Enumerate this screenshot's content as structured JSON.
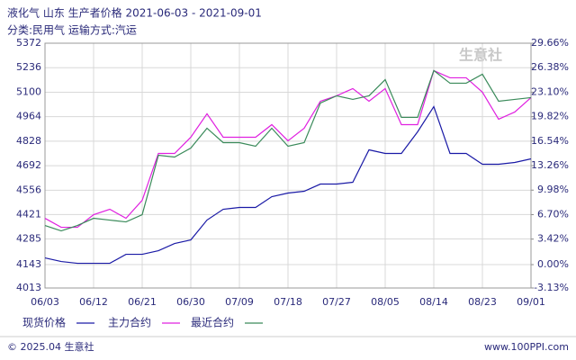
{
  "chart_data": {
    "type": "line",
    "title": "液化气 山东 生产者价格 2021-06-03 - 2021-09-01",
    "subtitle": "分类:民用气 运输方式:汽运",
    "categories": [
      "06/03",
      null,
      null,
      "06/12",
      null,
      null,
      "06/21",
      null,
      null,
      "06/30",
      null,
      null,
      "07/09",
      null,
      null,
      "07/18",
      null,
      null,
      "07/27",
      null,
      null,
      "08/05",
      null,
      null,
      "08/14",
      null,
      null,
      "08/23",
      null,
      null,
      "09/01"
    ],
    "series": [
      {
        "name": "现货价格",
        "color": "#1a1aa6",
        "values": [
          4180,
          4160,
          4150,
          4150,
          4150,
          4200,
          4200,
          4220,
          4260,
          4280,
          4390,
          4450,
          4460,
          4460,
          4520,
          4540,
          4550,
          4590,
          4590,
          4600,
          4780,
          4760,
          4760,
          4880,
          5020,
          4760,
          4760,
          4700,
          4700,
          4710,
          4730
        ]
      },
      {
        "name": "主力合约",
        "color": "#e020e0",
        "values": [
          4400,
          4350,
          4350,
          4420,
          4450,
          4400,
          4500,
          4760,
          4760,
          4850,
          4980,
          4850,
          4850,
          4850,
          4920,
          4830,
          4900,
          5050,
          5080,
          5120,
          5050,
          5120,
          4920,
          4920,
          5220,
          5180,
          5180,
          5100,
          4950,
          4990,
          5070
        ]
      },
      {
        "name": "最近合约",
        "color": "#3a8a5a",
        "values": [
          4360,
          4330,
          4360,
          4400,
          4390,
          4380,
          4420,
          4750,
          4740,
          4790,
          4900,
          4820,
          4820,
          4800,
          4900,
          4800,
          4820,
          5040,
          5080,
          5060,
          5080,
          5170,
          4960,
          4960,
          5220,
          5150,
          5150,
          5200,
          5050,
          5060,
          5070
        ]
      }
    ],
    "ylim": [
      4013,
      5372
    ],
    "yticks": [
      4013,
      4143,
      4285,
      4421,
      4556,
      4692,
      4828,
      4964,
      5100,
      5236,
      5372
    ],
    "y2lim": [
      -3.13,
      29.66
    ],
    "y2ticks": [
      {
        "value": -3.13,
        "label": "-3.13%"
      },
      {
        "value": 0,
        "label": "0.00%"
      },
      {
        "value": 3.42,
        "label": "3.42%"
      },
      {
        "value": 6.7,
        "label": "6.70%"
      },
      {
        "value": 9.98,
        "label": "9.98%"
      },
      {
        "value": 13.26,
        "label": "13.26%"
      },
      {
        "value": 16.54,
        "label": "16.54%"
      },
      {
        "value": 19.82,
        "label": "19.82%"
      },
      {
        "value": 23.1,
        "label": "23.10%"
      },
      {
        "value": 26.38,
        "label": "26.38%"
      },
      {
        "value": 29.66,
        "label": "29.66%"
      }
    ],
    "grid": true,
    "watermark": "生意社",
    "footer": {
      "copyright": "© 2025.04 生意社",
      "site": "www.100PPI.com"
    }
  }
}
